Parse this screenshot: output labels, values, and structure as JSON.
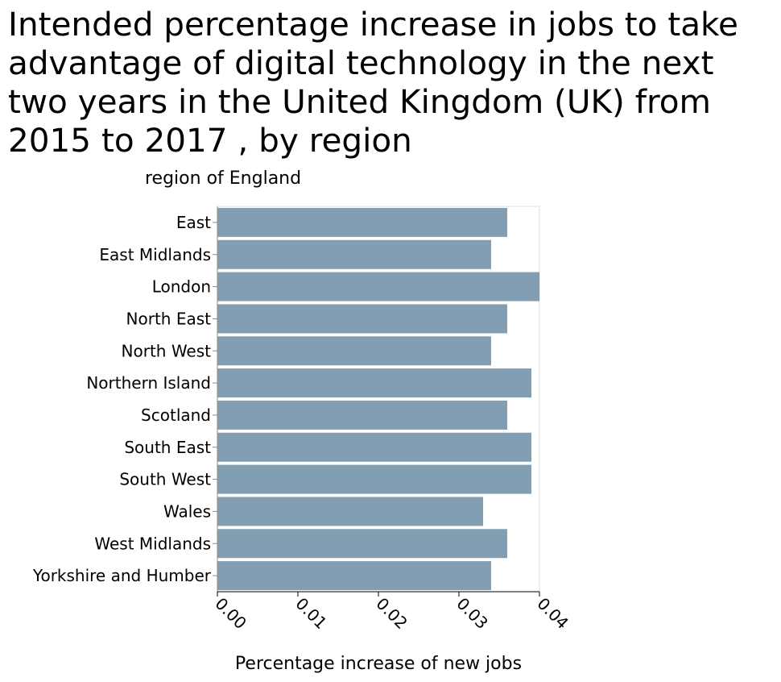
{
  "chart_data": {
    "type": "bar",
    "orientation": "horizontal",
    "title": "Intended percentage increase in jobs to take advantage of digital technology in the next two years in the United Kingdom (UK) from 2015 to 2017 , by region",
    "ylabel": "region of England",
    "xlabel": "Percentage increase of new jobs",
    "categories": [
      "East",
      "East Midlands",
      "London",
      "North East",
      "North West",
      "Northern Island",
      "Scotland",
      "South East",
      "South West",
      "Wales",
      "West Midlands",
      "Yorkshire and Humber"
    ],
    "values": [
      0.036,
      0.034,
      0.04,
      0.036,
      0.034,
      0.039,
      0.036,
      0.039,
      0.039,
      0.033,
      0.036,
      0.034
    ],
    "xlim": [
      0,
      0.04
    ],
    "xticks": [
      "0.00",
      "0.01",
      "0.02",
      "0.03",
      "0.04"
    ],
    "bar_color": "#829eb2",
    "grid": false
  }
}
